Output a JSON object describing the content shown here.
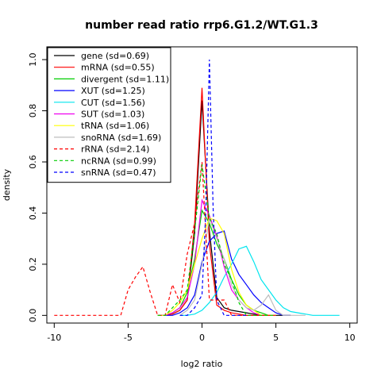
{
  "chart_data": {
    "type": "line",
    "title": "number read ratio rrp6.G1.2/WT.G1.3",
    "xlabel": "log2 ratio",
    "ylabel": "density",
    "xlim": [
      -10.5,
      10.5
    ],
    "ylim": [
      -0.03,
      1.05
    ],
    "x_ticks": [
      -10,
      -5,
      0,
      5,
      10
    ],
    "y_ticks": [
      0.0,
      0.2,
      0.4,
      0.6,
      0.8,
      1.0
    ],
    "legend_position": "top-left",
    "series": [
      {
        "name": "gene (sd=0.69)",
        "color": "#000000",
        "dash": false,
        "x": [
          -3,
          -2.5,
          -2,
          -1.5,
          -1,
          -0.5,
          0,
          0.5,
          1,
          1.5,
          2,
          2.5,
          3,
          3.5,
          4,
          5,
          6
        ],
        "y": [
          0,
          0,
          0.005,
          0.02,
          0.06,
          0.32,
          0.84,
          0.33,
          0.07,
          0.03,
          0.02,
          0.015,
          0.01,
          0.005,
          0,
          0,
          0
        ]
      },
      {
        "name": "mRNA (sd=0.55)",
        "color": "#ff0000",
        "dash": false,
        "x": [
          -3,
          -2.5,
          -2,
          -1.5,
          -1,
          -0.5,
          0,
          0.5,
          1,
          1.5,
          2,
          2.5,
          3,
          4,
          5
        ],
        "y": [
          0,
          0,
          0.005,
          0.02,
          0.06,
          0.36,
          0.89,
          0.28,
          0.04,
          0.02,
          0.01,
          0.005,
          0,
          0,
          0
        ]
      },
      {
        "name": "divergent (sd=1.11)",
        "color": "#00cd00",
        "dash": false,
        "x": [
          -3,
          -2.5,
          -2,
          -1.5,
          -1,
          -0.5,
          0,
          0.5,
          1,
          1.5,
          2,
          2.5,
          3,
          3.5,
          4,
          4.5,
          5
        ],
        "y": [
          0,
          0,
          0.01,
          0.03,
          0.09,
          0.22,
          0.41,
          0.36,
          0.28,
          0.22,
          0.14,
          0.08,
          0.04,
          0.02,
          0.01,
          0,
          0
        ]
      },
      {
        "name": "XUT (sd=1.25)",
        "color": "#0000ff",
        "dash": false,
        "x": [
          -3,
          -2.5,
          -2,
          -1.5,
          -1,
          -0.5,
          0,
          0.5,
          1,
          1.5,
          2,
          2.5,
          3,
          3.5,
          4,
          4.5,
          5,
          5.5,
          6
        ],
        "y": [
          0,
          0,
          0,
          0.01,
          0.03,
          0.08,
          0.21,
          0.29,
          0.32,
          0.33,
          0.22,
          0.16,
          0.12,
          0.08,
          0.05,
          0.03,
          0.01,
          0,
          0
        ]
      },
      {
        "name": "CUT (sd=1.56)",
        "color": "#00e5ee",
        "dash": false,
        "x": [
          -1.5,
          -1,
          -0.5,
          0,
          0.5,
          1,
          1.5,
          2,
          2.5,
          3,
          3.5,
          4,
          4.5,
          5,
          5.5,
          6,
          6.5,
          7,
          7.5,
          8,
          9.3
        ],
        "y": [
          0,
          0,
          0.005,
          0.02,
          0.05,
          0.09,
          0.15,
          0.2,
          0.26,
          0.27,
          0.21,
          0.14,
          0.1,
          0.06,
          0.03,
          0.015,
          0.01,
          0.005,
          0,
          0,
          0
        ]
      },
      {
        "name": "SUT (sd=1.03)",
        "color": "#ee00ee",
        "dash": false,
        "x": [
          -3,
          -2.5,
          -2,
          -1.5,
          -1,
          -0.5,
          0,
          0.5,
          1,
          1.5,
          2,
          2.5,
          3,
          3.5,
          4,
          5
        ],
        "y": [
          0,
          0,
          0.01,
          0.03,
          0.07,
          0.2,
          0.45,
          0.39,
          0.31,
          0.19,
          0.1,
          0.06,
          0.03,
          0.01,
          0,
          0
        ]
      },
      {
        "name": "tRNA (sd=1.06)",
        "color": "#ffff00",
        "dash": false,
        "x": [
          -3,
          -2.5,
          -2,
          -1.5,
          -1,
          -0.5,
          0,
          0.5,
          1,
          1.5,
          2,
          2.5,
          3,
          3.5,
          4,
          5
        ],
        "y": [
          0,
          0,
          0.02,
          0.05,
          0.1,
          0.2,
          0.3,
          0.38,
          0.37,
          0.32,
          0.18,
          0.09,
          0.04,
          0.02,
          0,
          0
        ]
      },
      {
        "name": "snoRNA (sd=1.69)",
        "color": "#bebebe",
        "dash": false,
        "x": [
          -1.5,
          -1,
          -0.5,
          0,
          0.5,
          1,
          1.5,
          2,
          2.5,
          3,
          3.5,
          4,
          4.5,
          5,
          5.5,
          6,
          7
        ],
        "y": [
          0,
          0.02,
          0.06,
          0.2,
          0.38,
          0.3,
          0.22,
          0.12,
          0.06,
          0.03,
          0.02,
          0.04,
          0.08,
          0.02,
          0,
          0,
          0
        ]
      },
      {
        "name": "rRNA (sd=2.14)",
        "color": "#ff0000",
        "dash": true,
        "x": [
          -10,
          -9,
          -8,
          -7,
          -6,
          -5.5,
          -5,
          -4.5,
          -4,
          -3.5,
          -3,
          -2.5,
          -2,
          -1.5,
          -1,
          -0.5,
          0,
          0.5,
          1,
          1.5,
          2,
          2.5,
          3,
          4,
          5
        ],
        "y": [
          0,
          0,
          0,
          0,
          0,
          0,
          0.1,
          0.15,
          0.19,
          0.09,
          0,
          0,
          0.12,
          0.05,
          0.24,
          0.36,
          0.6,
          0.06,
          0.06,
          0.06,
          0,
          0,
          0,
          0,
          0
        ]
      },
      {
        "name": "ncRNA (sd=0.99)",
        "color": "#00cd00",
        "dash": true,
        "x": [
          -3,
          -2.5,
          -2,
          -1.5,
          -1,
          -0.5,
          0,
          0.5,
          1,
          1.5,
          2,
          2.5,
          3,
          4,
          5
        ],
        "y": [
          0,
          0,
          0.03,
          0.06,
          0.1,
          0.33,
          0.59,
          0.38,
          0.32,
          0.2,
          0.14,
          0.05,
          0,
          0,
          0
        ]
      },
      {
        "name": "snRNA (sd=0.47)",
        "color": "#0000ff",
        "dash": true,
        "x": [
          -1.5,
          -1,
          -0.5,
          0,
          0.25,
          0.5,
          0.75,
          1,
          1.5,
          2,
          3
        ],
        "y": [
          0,
          0,
          0.03,
          0.08,
          0.4,
          1.0,
          0.42,
          0.06,
          0,
          0,
          0
        ]
      }
    ]
  }
}
